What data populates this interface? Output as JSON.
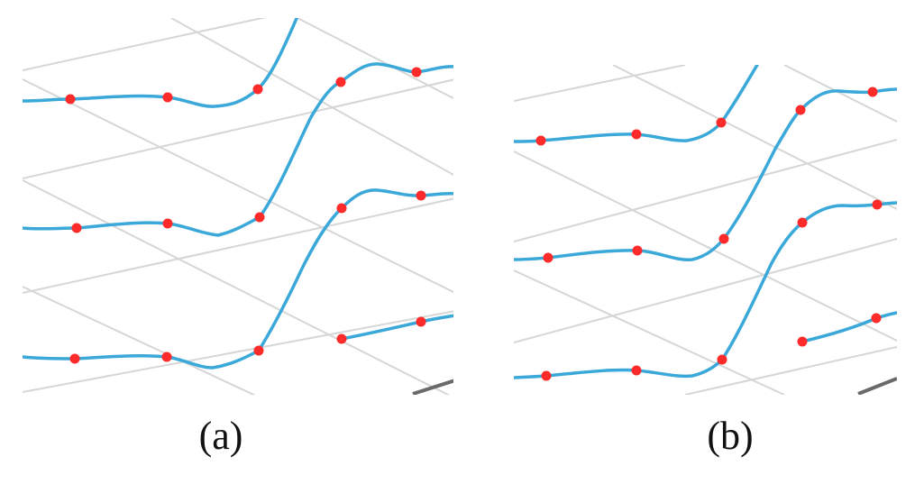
{
  "colors": {
    "curve": "#3aa8d8",
    "marker": "#ff2a2a",
    "grid": "#cfcfcf",
    "rail": "#5a5a5a"
  },
  "panels": [
    {
      "id": "a",
      "caption": "(a)"
    },
    {
      "id": "b",
      "caption": "(b)"
    }
  ]
}
